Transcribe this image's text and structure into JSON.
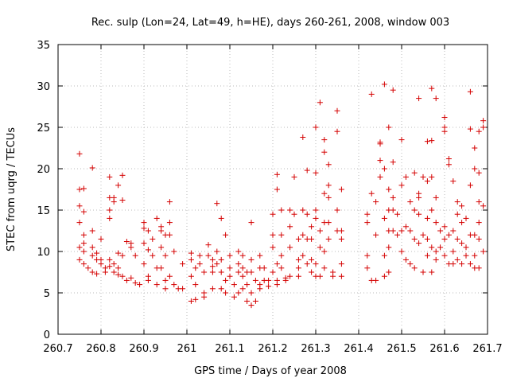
{
  "chart_data": {
    "type": "scatter",
    "title": "Rec. sulp (Lon=24, Lat=49, h=HE), days 260-261, 2008, window 003",
    "xlabel": "GPS time / Days of year 2008",
    "ylabel": "STEC from uqrg / TECUs",
    "xlim": [
      260.7,
      261.7
    ],
    "ylim": [
      0,
      35
    ],
    "xticks": [
      260.7,
      260.8,
      260.9,
      261,
      261.1,
      261.2,
      261.3,
      261.4,
      261.5,
      261.6,
      261.7
    ],
    "xtick_labels": [
      "260.7",
      "260.8",
      "260.9",
      "261",
      "261.1",
      "261.2",
      "261.3",
      "261.4",
      "261.5",
      "261.6",
      "261.7"
    ],
    "yticks": [
      0,
      5,
      10,
      15,
      20,
      25,
      30,
      35
    ],
    "ytick_labels": [
      "0",
      "5",
      "10",
      "15",
      "20",
      "25",
      "30",
      "35"
    ],
    "grid": true,
    "marker": "+",
    "color": "#d40000",
    "points": [
      [
        260.75,
        21.8
      ],
      [
        260.75,
        17.5
      ],
      [
        260.76,
        17.6
      ],
      [
        260.75,
        15.5
      ],
      [
        260.76,
        14.8
      ],
      [
        260.75,
        13.5
      ],
      [
        260.76,
        12.0
      ],
      [
        260.76,
        11.0
      ],
      [
        260.75,
        10.5
      ],
      [
        260.76,
        10.0
      ],
      [
        260.75,
        9.0
      ],
      [
        260.76,
        8.5
      ],
      [
        260.77,
        8.0
      ],
      [
        260.78,
        20.1
      ],
      [
        260.78,
        12.5
      ],
      [
        260.78,
        10.5
      ],
      [
        260.79,
        9.8
      ],
      [
        260.78,
        9.5
      ],
      [
        260.79,
        9.0
      ],
      [
        260.78,
        7.5
      ],
      [
        260.79,
        7.3
      ],
      [
        260.8,
        11.5
      ],
      [
        260.8,
        9.0
      ],
      [
        260.8,
        8.5
      ],
      [
        260.81,
        8.0
      ],
      [
        260.81,
        7.5
      ],
      [
        260.82,
        19.0
      ],
      [
        260.82,
        16.5
      ],
      [
        260.83,
        16.5
      ],
      [
        260.83,
        16.0
      ],
      [
        260.82,
        15.0
      ],
      [
        260.82,
        14.0
      ],
      [
        260.82,
        9.0
      ],
      [
        260.83,
        8.5
      ],
      [
        260.82,
        8.2
      ],
      [
        260.84,
        8.0
      ],
      [
        260.83,
        7.5
      ],
      [
        260.84,
        7.2
      ],
      [
        260.85,
        19.2
      ],
      [
        260.84,
        18.0
      ],
      [
        260.85,
        16.2
      ],
      [
        260.84,
        9.8
      ],
      [
        260.85,
        9.5
      ],
      [
        260.85,
        7.0
      ],
      [
        260.86,
        6.5
      ],
      [
        260.86,
        11.2
      ],
      [
        260.87,
        11.0
      ],
      [
        260.87,
        10.5
      ],
      [
        260.88,
        9.5
      ],
      [
        260.87,
        6.8
      ],
      [
        260.88,
        6.2
      ],
      [
        260.89,
        6.0
      ],
      [
        260.9,
        13.5
      ],
      [
        260.9,
        12.8
      ],
      [
        260.91,
        12.5
      ],
      [
        260.9,
        11.0
      ],
      [
        260.91,
        10.2
      ],
      [
        260.9,
        8.5
      ],
      [
        260.91,
        7.0
      ],
      [
        260.91,
        6.5
      ],
      [
        260.92,
        11.5
      ],
      [
        260.92,
        9.5
      ],
      [
        260.93,
        14.0
      ],
      [
        260.93,
        8.0
      ],
      [
        260.93,
        6.0
      ],
      [
        260.94,
        13.0
      ],
      [
        260.94,
        12.5
      ],
      [
        260.95,
        12.0
      ],
      [
        260.94,
        10.5
      ],
      [
        260.95,
        9.5
      ],
      [
        260.94,
        8.0
      ],
      [
        260.95,
        6.5
      ],
      [
        260.95,
        5.5
      ],
      [
        260.96,
        16.0
      ],
      [
        260.96,
        13.5
      ],
      [
        260.96,
        12.0
      ],
      [
        260.97,
        10.0
      ],
      [
        260.96,
        7.0
      ],
      [
        260.97,
        6.0
      ],
      [
        260.98,
        5.5
      ],
      [
        260.99,
        8.5
      ],
      [
        260.99,
        5.5
      ],
      [
        261.01,
        9.8
      ],
      [
        261.01,
        9.0
      ],
      [
        261.02,
        8.0
      ],
      [
        261.01,
        7.0
      ],
      [
        261.02,
        6.0
      ],
      [
        261.01,
        4.0
      ],
      [
        261.02,
        4.2
      ],
      [
        261.03,
        9.5
      ],
      [
        261.03,
        8.5
      ],
      [
        261.04,
        7.5
      ],
      [
        261.04,
        5.0
      ],
      [
        261.04,
        4.5
      ],
      [
        261.05,
        10.8
      ],
      [
        261.05,
        9.5
      ],
      [
        261.06,
        9.0
      ],
      [
        261.06,
        8.2
      ],
      [
        261.06,
        7.5
      ],
      [
        261.06,
        5.5
      ],
      [
        261.07,
        15.8
      ],
      [
        261.07,
        10.0
      ],
      [
        261.07,
        8.5
      ],
      [
        261.08,
        14.0
      ],
      [
        261.08,
        9.0
      ],
      [
        261.08,
        7.5
      ],
      [
        261.08,
        5.5
      ],
      [
        261.09,
        12.0
      ],
      [
        261.09,
        6.5
      ],
      [
        261.09,
        5.0
      ],
      [
        261.1,
        9.5
      ],
      [
        261.1,
        8.0
      ],
      [
        261.1,
        7.0
      ],
      [
        261.11,
        6.0
      ],
      [
        261.11,
        4.5
      ],
      [
        261.12,
        10.0
      ],
      [
        261.12,
        8.5
      ],
      [
        261.12,
        7.5
      ],
      [
        261.12,
        5.0
      ],
      [
        261.13,
        9.5
      ],
      [
        261.13,
        8.0
      ],
      [
        261.13,
        7.0
      ],
      [
        261.13,
        5.5
      ],
      [
        261.14,
        7.5
      ],
      [
        261.14,
        6.0
      ],
      [
        261.14,
        4.0
      ],
      [
        261.15,
        13.5
      ],
      [
        261.15,
        9.0
      ],
      [
        261.15,
        7.5
      ],
      [
        261.15,
        5.0
      ],
      [
        261.15,
        3.5
      ],
      [
        261.16,
        6.5
      ],
      [
        261.16,
        4.0
      ],
      [
        261.17,
        9.5
      ],
      [
        261.17,
        8.0
      ],
      [
        261.17,
        6.0
      ],
      [
        261.17,
        5.5
      ],
      [
        261.18,
        8.0
      ],
      [
        261.18,
        6.5
      ],
      [
        261.19,
        6.5
      ],
      [
        261.19,
        5.8
      ],
      [
        261.2,
        14.5
      ],
      [
        261.2,
        12.0
      ],
      [
        261.2,
        10.5
      ],
      [
        261.21,
        8.5
      ],
      [
        261.2,
        7.5
      ],
      [
        261.21,
        6.5
      ],
      [
        261.21,
        6.0
      ],
      [
        261.21,
        19.3
      ],
      [
        261.21,
        17.5
      ],
      [
        261.22,
        15.0
      ],
      [
        261.22,
        12.0
      ],
      [
        261.22,
        9.5
      ],
      [
        261.22,
        8.0
      ],
      [
        261.23,
        6.5
      ],
      [
        261.23,
        6.8
      ],
      [
        261.24,
        15.0
      ],
      [
        261.24,
        13.0
      ],
      [
        261.24,
        10.5
      ],
      [
        261.24,
        7.0
      ],
      [
        261.25,
        19.0
      ],
      [
        261.25,
        14.5
      ],
      [
        261.26,
        11.5
      ],
      [
        261.26,
        9.0
      ],
      [
        261.26,
        8.0
      ],
      [
        261.26,
        7.0
      ],
      [
        261.27,
        23.8
      ],
      [
        261.27,
        15.0
      ],
      [
        261.27,
        12.0
      ],
      [
        261.27,
        9.5
      ],
      [
        261.28,
        19.8
      ],
      [
        261.28,
        14.5
      ],
      [
        261.28,
        11.5
      ],
      [
        261.28,
        8.5
      ],
      [
        261.29,
        13.0
      ],
      [
        261.29,
        11.5
      ],
      [
        261.29,
        9.0
      ],
      [
        261.29,
        7.5
      ],
      [
        261.3,
        25.0
      ],
      [
        261.3,
        19.5
      ],
      [
        261.3,
        15.0
      ],
      [
        261.3,
        14.0
      ],
      [
        261.3,
        8.5
      ],
      [
        261.3,
        7.0
      ],
      [
        261.31,
        28.0
      ],
      [
        261.31,
        12.5
      ],
      [
        261.31,
        10.5
      ],
      [
        261.31,
        7.0
      ],
      [
        261.32,
        23.5
      ],
      [
        261.32,
        22.0
      ],
      [
        261.32,
        17.0
      ],
      [
        261.32,
        13.5
      ],
      [
        261.32,
        10.0
      ],
      [
        261.32,
        8.0
      ],
      [
        261.33,
        20.5
      ],
      [
        261.33,
        18.0
      ],
      [
        261.33,
        16.5
      ],
      [
        261.33,
        13.5
      ],
      [
        261.33,
        11.5
      ],
      [
        261.34,
        7.5
      ],
      [
        261.34,
        7.0
      ],
      [
        261.35,
        27.0
      ],
      [
        261.35,
        24.5
      ],
      [
        261.35,
        15.0
      ],
      [
        261.35,
        12.5
      ],
      [
        261.36,
        17.5
      ],
      [
        261.36,
        12.5
      ],
      [
        261.36,
        11.5
      ],
      [
        261.36,
        8.5
      ],
      [
        261.36,
        7.0
      ],
      [
        261.42,
        14.5
      ],
      [
        261.42,
        13.5
      ],
      [
        261.42,
        9.5
      ],
      [
        261.42,
        8.0
      ],
      [
        261.43,
        29.0
      ],
      [
        261.43,
        17.0
      ],
      [
        261.44,
        16.0
      ],
      [
        261.44,
        12.0
      ],
      [
        261.43,
        6.5
      ],
      [
        261.44,
        6.5
      ],
      [
        261.45,
        23.2
      ],
      [
        261.45,
        23.0
      ],
      [
        261.45,
        21.0
      ],
      [
        261.45,
        19.0
      ],
      [
        261.46,
        30.2
      ],
      [
        261.46,
        20.0
      ],
      [
        261.46,
        14.0
      ],
      [
        261.46,
        9.5
      ],
      [
        261.46,
        7.0
      ],
      [
        261.47,
        25.0
      ],
      [
        261.47,
        17.5
      ],
      [
        261.47,
        15.0
      ],
      [
        261.47,
        12.5
      ],
      [
        261.47,
        10.5
      ],
      [
        261.47,
        7.5
      ],
      [
        261.48,
        29.5
      ],
      [
        261.48,
        20.8
      ],
      [
        261.48,
        16.5
      ],
      [
        261.48,
        15.0
      ],
      [
        261.48,
        12.5
      ],
      [
        261.49,
        14.5
      ],
      [
        261.49,
        12.0
      ],
      [
        261.5,
        23.5
      ],
      [
        261.5,
        18.0
      ],
      [
        261.5,
        12.5
      ],
      [
        261.5,
        10.0
      ],
      [
        261.51,
        19.0
      ],
      [
        261.51,
        13.0
      ],
      [
        261.51,
        9.0
      ],
      [
        261.52,
        16.0
      ],
      [
        261.52,
        12.5
      ],
      [
        261.52,
        8.5
      ],
      [
        261.53,
        19.5
      ],
      [
        261.53,
        15.0
      ],
      [
        261.53,
        11.5
      ],
      [
        261.53,
        8.0
      ],
      [
        261.54,
        28.5
      ],
      [
        261.54,
        17.0
      ],
      [
        261.54,
        16.5
      ],
      [
        261.54,
        14.5
      ],
      [
        261.54,
        11.0
      ],
      [
        261.55,
        19.0
      ],
      [
        261.55,
        12.0
      ],
      [
        261.55,
        7.5
      ],
      [
        261.56,
        23.3
      ],
      [
        261.56,
        18.5
      ],
      [
        261.56,
        14.0
      ],
      [
        261.56,
        11.5
      ],
      [
        261.56,
        9.5
      ],
      [
        261.57,
        29.7
      ],
      [
        261.57,
        23.4
      ],
      [
        261.57,
        19.0
      ],
      [
        261.57,
        15.0
      ],
      [
        261.57,
        10.5
      ],
      [
        261.57,
        7.5
      ],
      [
        261.58,
        28.5
      ],
      [
        261.58,
        16.5
      ],
      [
        261.58,
        13.5
      ],
      [
        261.58,
        10.0
      ],
      [
        261.58,
        9.0
      ],
      [
        261.59,
        12.5
      ],
      [
        261.59,
        10.5
      ],
      [
        261.6,
        26.2
      ],
      [
        261.6,
        25.0
      ],
      [
        261.6,
        24.5
      ],
      [
        261.6,
        13.0
      ],
      [
        261.6,
        11.5
      ],
      [
        261.6,
        9.5
      ],
      [
        261.61,
        21.2
      ],
      [
        261.61,
        20.5
      ],
      [
        261.61,
        12.0
      ],
      [
        261.61,
        8.5
      ],
      [
        261.62,
        18.5
      ],
      [
        261.62,
        12.5
      ],
      [
        261.62,
        10.0
      ],
      [
        261.62,
        8.5
      ],
      [
        261.63,
        16.0
      ],
      [
        261.63,
        14.5
      ],
      [
        261.63,
        11.5
      ],
      [
        261.63,
        9.0
      ],
      [
        261.64,
        15.5
      ],
      [
        261.64,
        13.5
      ],
      [
        261.64,
        11.0
      ],
      [
        261.64,
        8.5
      ],
      [
        261.65,
        14.0
      ],
      [
        261.65,
        10.5
      ],
      [
        261.65,
        9.5
      ],
      [
        261.66,
        29.3
      ],
      [
        261.66,
        24.8
      ],
      [
        261.66,
        18.0
      ],
      [
        261.66,
        12.0
      ],
      [
        261.66,
        8.5
      ],
      [
        261.67,
        22.5
      ],
      [
        261.67,
        20.0
      ],
      [
        261.67,
        12.0
      ],
      [
        261.67,
        9.5
      ],
      [
        261.67,
        8.0
      ],
      [
        261.68,
        24.5
      ],
      [
        261.68,
        19.5
      ],
      [
        261.68,
        16.0
      ],
      [
        261.68,
        13.5
      ],
      [
        261.68,
        11.5
      ],
      [
        261.68,
        8.0
      ],
      [
        261.69,
        25.8
      ],
      [
        261.69,
        25.0
      ],
      [
        261.69,
        15.5
      ],
      [
        261.69,
        10.0
      ]
    ]
  }
}
